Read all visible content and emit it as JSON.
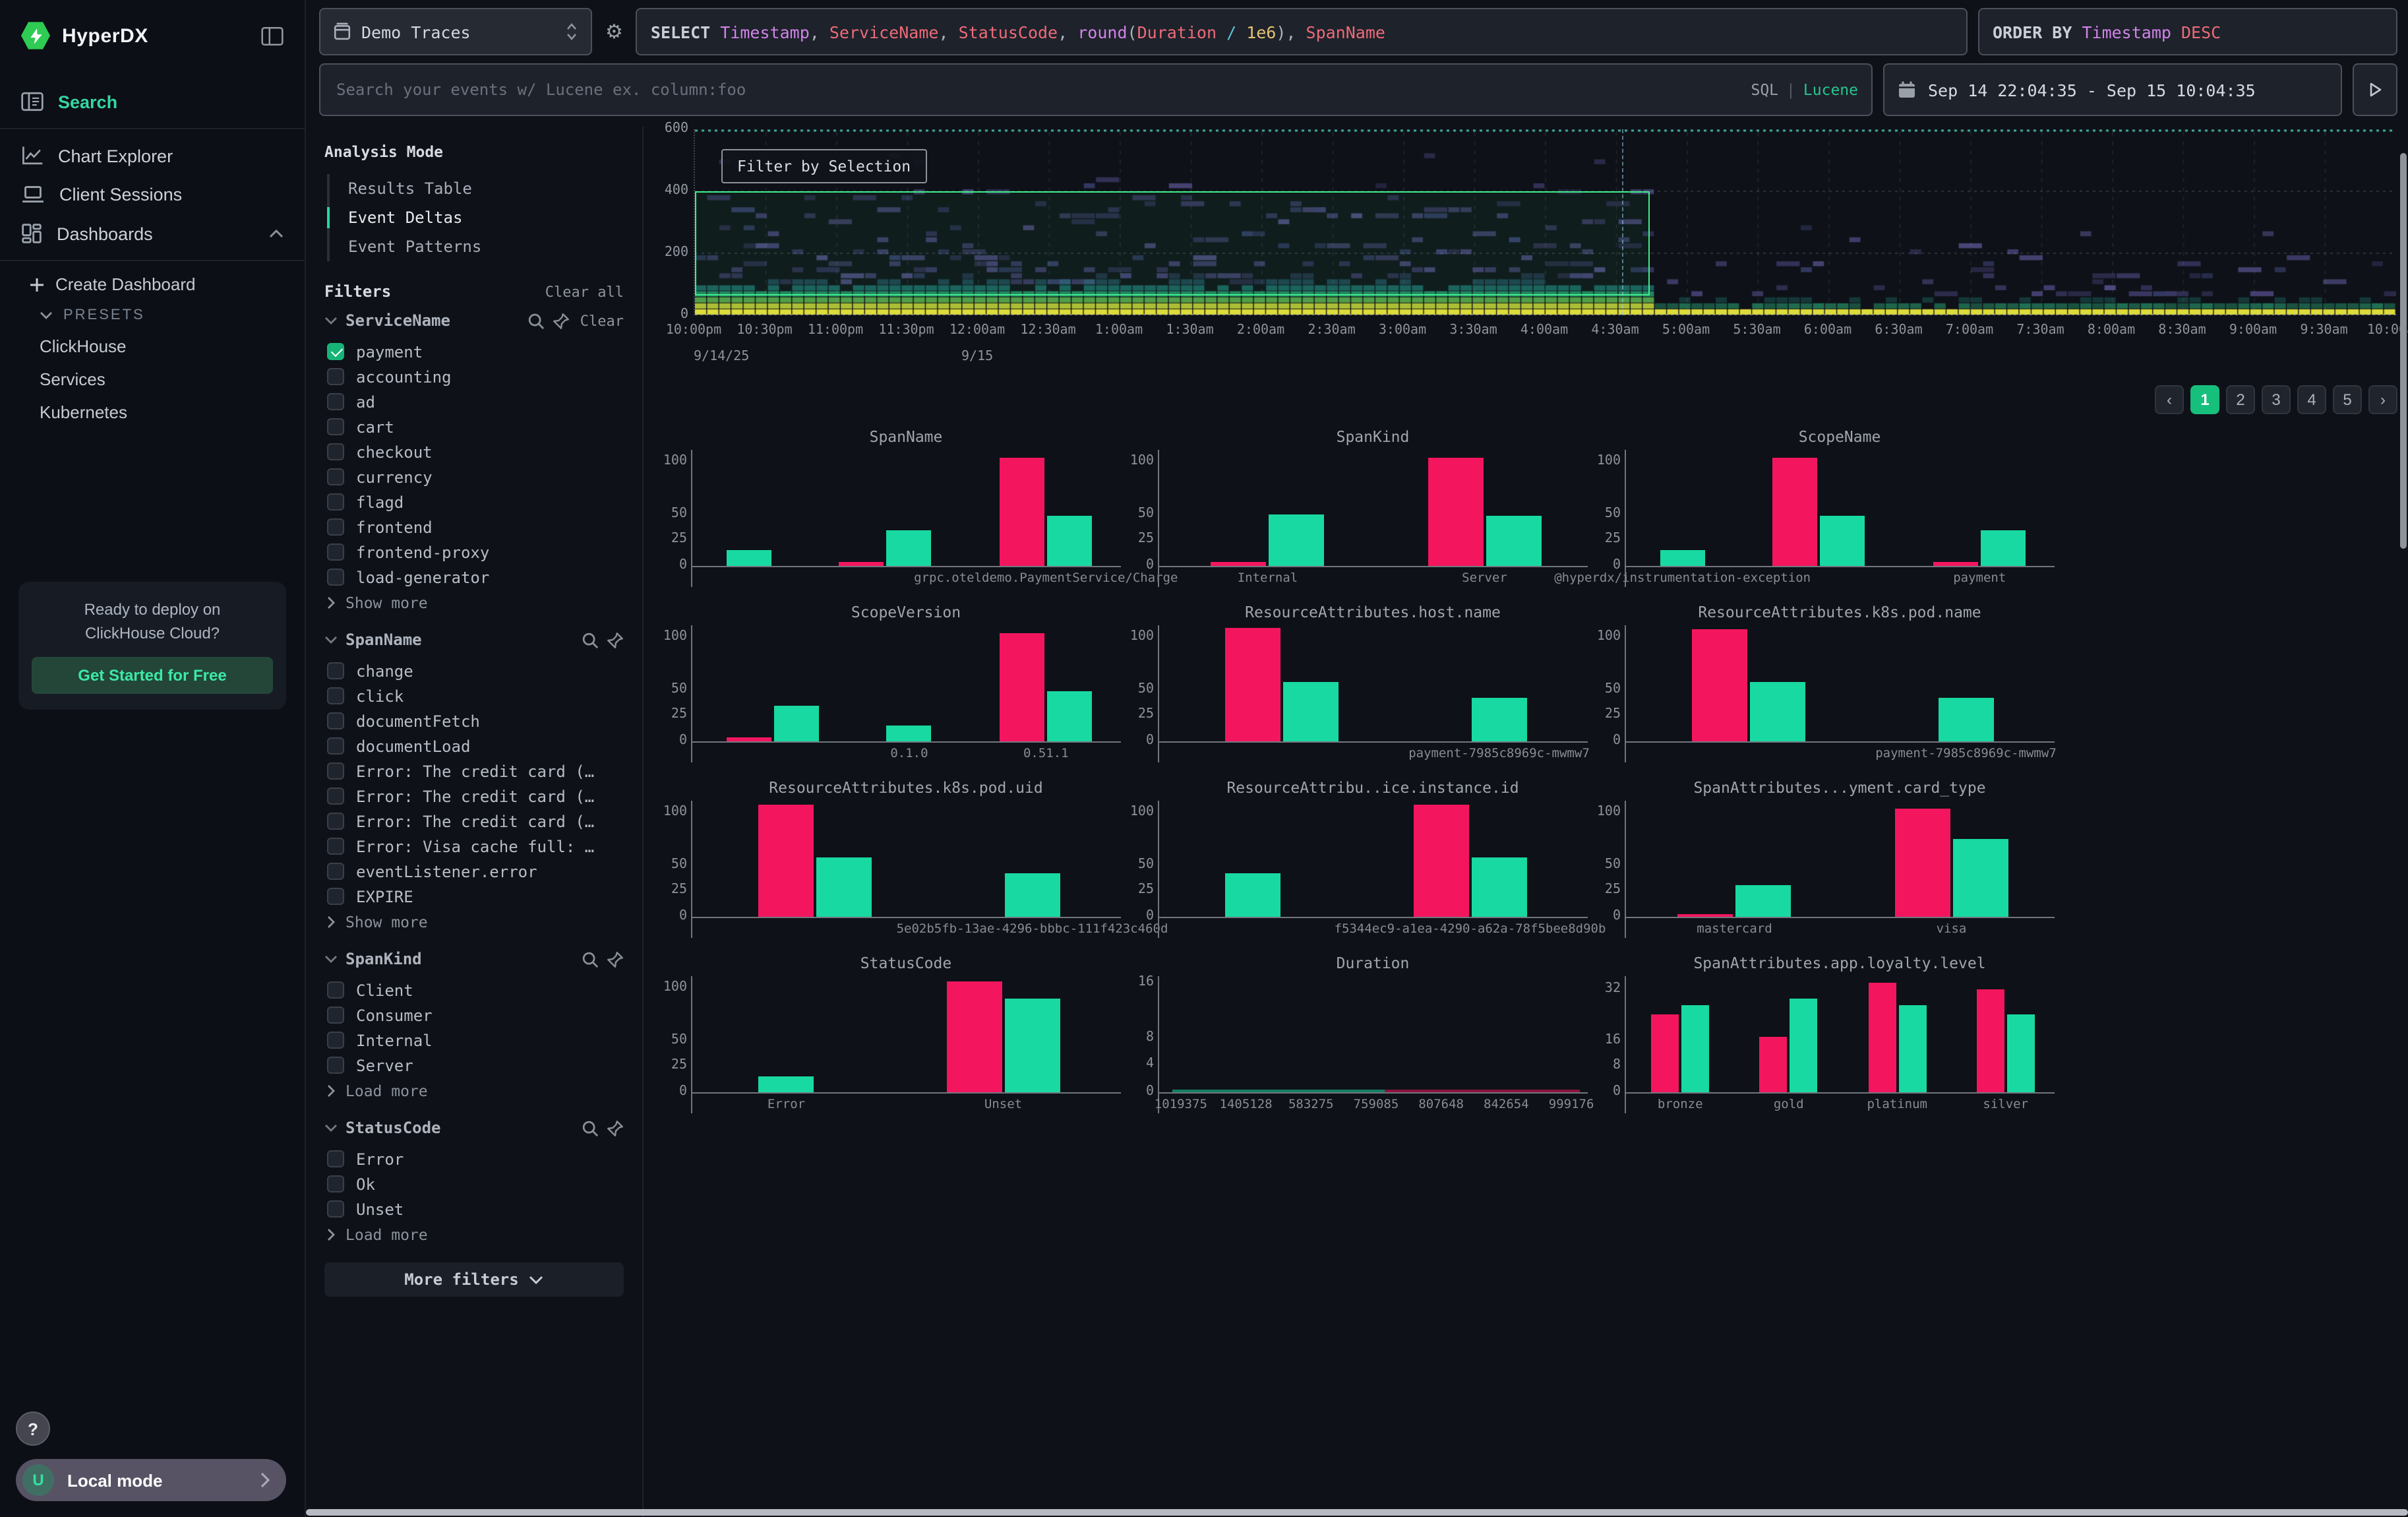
{
  "app": {
    "title": "HyperDX"
  },
  "colors": {
    "accent_green": "#25d9a2",
    "logo_green": "#2ecc52",
    "bar_pink": "#f3165f",
    "bar_green": "#19d9a2",
    "selection_green": "#3ef08b",
    "checkbox_green": "#16b577",
    "pagination_active": "#17bf7c",
    "heat_yellow": "#e9e73b",
    "heat_teal": "#2fc186",
    "heat_navy": "#4a4378"
  },
  "sidebar": {
    "logo": "HyperDX",
    "nav": [
      {
        "label": "Search",
        "icon": "search-results",
        "active": true,
        "divider_after": true
      },
      {
        "label": "Chart Explorer",
        "icon": "chart"
      },
      {
        "label": "Client Sessions",
        "icon": "laptop"
      },
      {
        "label": "Dashboards",
        "icon": "grid",
        "chevron": "up",
        "divider_after": true
      }
    ],
    "dashboards_menu": [
      {
        "label": "Create Dashboard",
        "type": "create"
      },
      {
        "label": "PRESETS",
        "type": "presets"
      },
      {
        "label": "ClickHouse",
        "type": "plain"
      },
      {
        "label": "Services",
        "type": "plain"
      },
      {
        "label": "Kubernetes",
        "type": "plain"
      }
    ],
    "promo": {
      "line1": "Ready to deploy on",
      "line2": "ClickHouse Cloud?",
      "cta": "Get Started for Free"
    },
    "help": "?",
    "account": {
      "avatar": "U",
      "label": "Local mode"
    }
  },
  "topbar": {
    "source": {
      "label": "Demo Traces"
    },
    "select_tokens": [
      {
        "t": "SELECT ",
        "c": "kw"
      },
      {
        "t": "Timestamp",
        "c": "purple"
      },
      {
        "t": ", ",
        "c": "punct"
      },
      {
        "t": "ServiceName",
        "c": "red"
      },
      {
        "t": ", ",
        "c": "punct"
      },
      {
        "t": "StatusCode",
        "c": "red"
      },
      {
        "t": ", ",
        "c": "punct"
      },
      {
        "t": "round",
        "c": "purple"
      },
      {
        "t": "(",
        "c": "punct"
      },
      {
        "t": "Duration",
        "c": "red"
      },
      {
        "t": " / ",
        "c": "cyan"
      },
      {
        "t": "1e6",
        "c": "yellow"
      },
      {
        "t": ")",
        "c": "punct"
      },
      {
        "t": ", ",
        "c": "punct"
      },
      {
        "t": "SpanName",
        "c": "red"
      }
    ],
    "orderby_tokens": [
      {
        "t": "ORDER BY ",
        "c": "kw"
      },
      {
        "t": "Timestamp",
        "c": "purple"
      },
      {
        "t": " DESC",
        "c": "red"
      }
    ],
    "search": {
      "placeholder": "Search your events w/ Lucene ex. column:foo",
      "mode_sql": "SQL",
      "mode_sep": "|",
      "mode_lucene": "Lucene"
    },
    "daterange": "Sep 14 22:04:35 - Sep 15 10:04:35"
  },
  "filters_panel": {
    "analysis_mode": {
      "title": "Analysis Mode",
      "modes": [
        {
          "label": "Results Table"
        },
        {
          "label": "Event Deltas",
          "active": true
        },
        {
          "label": "Event Patterns"
        }
      ]
    },
    "header": {
      "title": "Filters",
      "clear_all": "Clear all"
    },
    "sections": [
      {
        "name": "ServiceName",
        "clear": "Clear",
        "more": "Show more",
        "items": [
          {
            "label": "payment",
            "checked": true
          },
          {
            "label": "accounting"
          },
          {
            "label": "ad"
          },
          {
            "label": "cart"
          },
          {
            "label": "checkout"
          },
          {
            "label": "currency"
          },
          {
            "label": "flagd"
          },
          {
            "label": "frontend"
          },
          {
            "label": "frontend-proxy"
          },
          {
            "label": "load-generator"
          }
        ]
      },
      {
        "name": "SpanName",
        "more": "Show more",
        "items": [
          {
            "label": "change"
          },
          {
            "label": "click"
          },
          {
            "label": "documentFetch"
          },
          {
            "label": "documentLoad"
          },
          {
            "label": "Error: The credit card (…"
          },
          {
            "label": "Error: The credit card (…"
          },
          {
            "label": "Error: The credit card (…"
          },
          {
            "label": "Error: Visa cache full: …"
          },
          {
            "label": "eventListener.error"
          },
          {
            "label": "EXPIRE"
          }
        ]
      },
      {
        "name": "SpanKind",
        "more": "Load more",
        "items": [
          {
            "label": "Client"
          },
          {
            "label": "Consumer"
          },
          {
            "label": "Internal"
          },
          {
            "label": "Server"
          }
        ]
      },
      {
        "name": "StatusCode",
        "more": "Load more",
        "items": [
          {
            "label": "Error"
          },
          {
            "label": "Ok"
          },
          {
            "label": "Unset"
          }
        ]
      }
    ],
    "more_filters": "More filters"
  },
  "pagination": {
    "prev": "‹",
    "next": "›",
    "pages": [
      "1",
      "2",
      "3",
      "4",
      "5"
    ],
    "active": "1"
  },
  "chart_data": [
    {
      "type": "heatmap",
      "name": "event-duration-heatmap",
      "xlabels": [
        "10:00pm",
        "10:30pm",
        "11:00pm",
        "11:30pm",
        "12:00am",
        "12:30am",
        "1:00am",
        "1:30am",
        "2:00am",
        "2:30am",
        "3:00am",
        "3:30am",
        "4:00am",
        "4:30am",
        "5:00am",
        "5:30am",
        "6:00am",
        "6:30am",
        "7:00am",
        "7:30am",
        "8:00am",
        "8:30am",
        "9:00am",
        "9:30am",
        "10:00am"
      ],
      "date_labels": [
        {
          "text": "9/14/25",
          "frac": 0,
          "align": "left"
        },
        {
          "text": "9/15",
          "frac": 0.1667,
          "align": "center"
        }
      ],
      "yticks": [
        600,
        400,
        200,
        0
      ],
      "ymax": 600,
      "selection": {
        "label": "Filter by Selection",
        "x_frac_start": 0,
        "x_frac_end": 0.562,
        "y_min": 65,
        "y_max": 400
      },
      "crosshair_x_frac": 0.545,
      "bands": [
        {
          "y_range": [
            0,
            8
          ],
          "color": "yellow",
          "density": "continuous dense baseline across full range"
        },
        {
          "y_range": [
            8,
            100
          ],
          "color": "teal-green stack",
          "density": "dense until ~5:00am, nearly absent after"
        },
        {
          "y_range": [
            100,
            400
          ],
          "color": "navy-purple speckles",
          "density": "moderate until ~5:00am, sparse after"
        },
        {
          "y_range": [
            400,
            600
          ],
          "color": "navy-purple speckles",
          "density": "rare, mostly before 3:30am"
        }
      ]
    },
    {
      "type": "bar",
      "title": "SpanName",
      "ymax": 112,
      "yticks": [
        0,
        25,
        50,
        100
      ],
      "groups": [
        {
          "label": "",
          "bars": [
            [
              "green",
              15
            ]
          ]
        },
        {
          "label": "",
          "bars": [
            [
              "pink",
              4
            ],
            [
              "green",
              35
            ]
          ]
        },
        {
          "label": "grpc.oteldemo.PaymentService/Charge",
          "bars": [
            [
              "pink",
              105
            ],
            [
              "green",
              49
            ]
          ]
        }
      ]
    },
    {
      "type": "bar",
      "title": "SpanKind",
      "ymax": 112,
      "yticks": [
        0,
        25,
        50,
        100
      ],
      "groups": [
        {
          "label": "Internal",
          "bars": [
            [
              "pink",
              4
            ],
            [
              "green",
              50
            ]
          ]
        },
        {
          "label": "Server",
          "bars": [
            [
              "pink",
              105
            ],
            [
              "green",
              49
            ]
          ]
        }
      ]
    },
    {
      "type": "bar",
      "title": "ScopeName",
      "ymax": 112,
      "yticks": [
        0,
        25,
        50,
        100
      ],
      "groups": [
        {
          "label": "@hyperdx/instrumentation-exception",
          "bars": [
            [
              "green",
              15
            ]
          ]
        },
        {
          "label": "",
          "bars": [
            [
              "pink",
              105
            ],
            [
              "green",
              49
            ]
          ]
        },
        {
          "label": "payment",
          "bars": [
            [
              "pink",
              4
            ],
            [
              "green",
              35
            ]
          ]
        }
      ]
    },
    {
      "type": "bar",
      "title": "ScopeVersion",
      "ymax": 112,
      "yticks": [
        0,
        25,
        50,
        100
      ],
      "groups": [
        {
          "label": "",
          "bars": [
            [
              "pink",
              4
            ],
            [
              "green",
              35
            ]
          ]
        },
        {
          "label": "0.1.0",
          "bars": [
            [
              "green",
              15
            ]
          ]
        },
        {
          "label": "0.51.1",
          "bars": [
            [
              "pink",
              105
            ],
            [
              "green",
              49
            ]
          ]
        }
      ]
    },
    {
      "type": "bar",
      "title": "ResourceAttributes.host.name",
      "ymax": 112,
      "yticks": [
        0,
        25,
        50,
        100
      ],
      "groups": [
        {
          "label": "",
          "bars": [
            [
              "pink",
              110
            ],
            [
              "green",
              57
            ]
          ]
        },
        {
          "label": "payment-7985c8969c-mwmw7",
          "bars": [
            [
              "green",
              42
            ]
          ]
        }
      ]
    },
    {
      "type": "bar",
      "title": "ResourceAttributes.k8s.pod.name",
      "ymax": 112,
      "yticks": [
        0,
        25,
        50,
        100
      ],
      "groups": [
        {
          "label": "",
          "bars": [
            [
              "pink",
              108
            ],
            [
              "green",
              57
            ]
          ]
        },
        {
          "label": "payment-7985c8969c-mwmw7",
          "bars": [
            [
              "green",
              42
            ]
          ]
        }
      ]
    },
    {
      "type": "bar",
      "title": "ResourceAttributes.k8s.pod.uid",
      "ymax": 112,
      "yticks": [
        0,
        25,
        50,
        100
      ],
      "groups": [
        {
          "label": "",
          "bars": [
            [
              "pink",
              108
            ],
            [
              "green",
              57
            ]
          ]
        },
        {
          "label": "5e02b5fb-13ae-4296-bbbc-111f423c460d",
          "bars": [
            [
              "green",
              42
            ]
          ]
        }
      ]
    },
    {
      "type": "bar",
      "title": "ResourceAttribu..ice.instance.id",
      "ymax": 112,
      "yticks": [
        0,
        25,
        50,
        100
      ],
      "groups": [
        {
          "label": "",
          "bars": [
            [
              "green",
              42
            ]
          ]
        },
        {
          "label": "f5344ec9-a1ea-4290-a62a-78f5bee8d90b",
          "bars": [
            [
              "pink",
              108
            ],
            [
              "green",
              57
            ]
          ]
        }
      ]
    },
    {
      "type": "bar",
      "title": "SpanAttributes...yment.card_type",
      "ymax": 112,
      "yticks": [
        0,
        25,
        50,
        100
      ],
      "groups": [
        {
          "label": "mastercard",
          "bars": [
            [
              "pink",
              3
            ],
            [
              "green",
              30
            ]
          ]
        },
        {
          "label": "visa",
          "bars": [
            [
              "pink",
              105
            ],
            [
              "green",
              75
            ]
          ]
        }
      ]
    },
    {
      "type": "bar",
      "title": "StatusCode",
      "ymax": 112,
      "yticks": [
        0,
        25,
        50,
        100
      ],
      "groups": [
        {
          "label": "Error",
          "bars": [
            [
              "green",
              15
            ]
          ]
        },
        {
          "label": "Unset",
          "bars": [
            [
              "pink",
              107
            ],
            [
              "green",
              90
            ]
          ]
        }
      ]
    },
    {
      "type": "bar",
      "title": "Duration",
      "ymax": 17,
      "yticks": [
        0,
        4,
        8,
        16
      ],
      "groups": [],
      "xticks": [
        "1019375",
        "1405128",
        "583275",
        "759085",
        "807648",
        "842654",
        "999176"
      ],
      "baseline_strips": [
        {
          "from": 0.03,
          "to": 0.52,
          "color": "green"
        },
        {
          "from": 0.52,
          "to": 0.97,
          "color": "pink"
        }
      ]
    },
    {
      "type": "bar",
      "title": "SpanAttributes.app.loyalty.level",
      "ymax": 36,
      "yticks": [
        0,
        8,
        16,
        32
      ],
      "groups": [
        {
          "label": "bronze",
          "bars": [
            [
              "pink",
              24
            ],
            [
              "green",
              27
            ]
          ]
        },
        {
          "label": "gold",
          "bars": [
            [
              "pink",
              17
            ],
            [
              "green",
              29
            ]
          ]
        },
        {
          "label": "platinum",
          "bars": [
            [
              "pink",
              34
            ],
            [
              "green",
              27
            ]
          ]
        },
        {
          "label": "silver",
          "bars": [
            [
              "pink",
              32
            ],
            [
              "green",
              24
            ]
          ]
        }
      ]
    }
  ]
}
